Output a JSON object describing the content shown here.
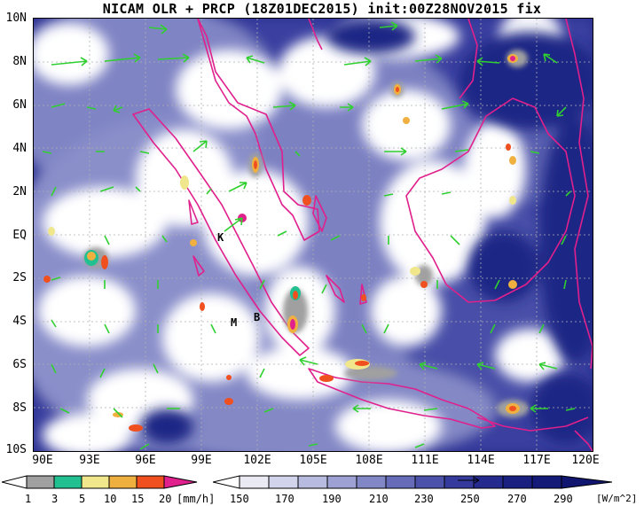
{
  "title": "NICAM OLR + PRCP (18Z01DEC2015) init:00Z28NOV2015 fix",
  "axes": {
    "y_ticks": [
      "10N",
      "8N",
      "6N",
      "4N",
      "2N",
      "EQ",
      "2S",
      "4S",
      "6S",
      "8S",
      "10S"
    ],
    "x_ticks": [
      "90E",
      "93E",
      "96E",
      "99E",
      "102E",
      "105E",
      "108E",
      "111E",
      "114E",
      "117E",
      "120E"
    ]
  },
  "map_labels": {
    "k": "K",
    "m": "M",
    "b": "B"
  },
  "precip_legend": {
    "ticks": [
      "1",
      "3",
      "5",
      "10",
      "15",
      "20"
    ],
    "unit": "[mm/h]",
    "colors": [
      "#a0a0a0",
      "#22c090",
      "#f0e68c",
      "#f0b040",
      "#f05020",
      "#e0208c"
    ]
  },
  "olr_legend": {
    "ticks": [
      "150",
      "170",
      "190",
      "210",
      "230",
      "250",
      "270",
      "290"
    ],
    "unit": "[W/m^2]",
    "colors": [
      "#ffffff",
      "#eaeaf5",
      "#d2d4ec",
      "#b8bbe0",
      "#9da1d3",
      "#8287c6",
      "#666cb8",
      "#4c52aa",
      "#353b9c",
      "#242a8e",
      "#1a2080"
    ]
  },
  "colors": {
    "coastline": "#e0208c",
    "wind_vector": "#30d030",
    "cloud": "#ffffff",
    "ocean_deep": "#2a2f8f"
  }
}
